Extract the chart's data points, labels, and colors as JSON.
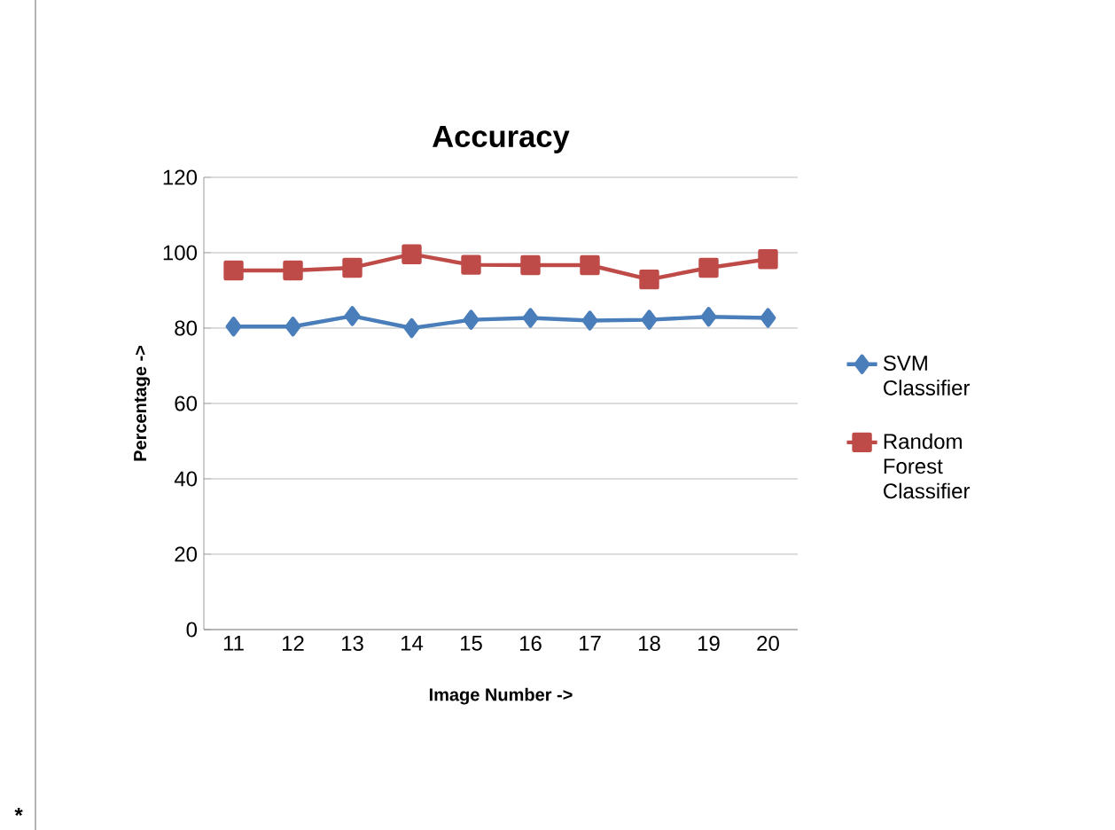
{
  "chart_data": {
    "type": "line",
    "title": "Accuracy",
    "xlabel": "Image Number ->",
    "ylabel": "Percentage ->",
    "categories": [
      "11",
      "12",
      "13",
      "14",
      "15",
      "16",
      "17",
      "18",
      "19",
      "20"
    ],
    "series": [
      {
        "name": "SVM Classifier",
        "color": "#4a7ebb",
        "marker": "diamond",
        "values": [
          80.4,
          80.4,
          83.2,
          80,
          82.2,
          82.7,
          82,
          82.2,
          83,
          82.7
        ]
      },
      {
        "name": "Random Forest Classifier",
        "color": "#be4b48",
        "marker": "square",
        "values": [
          95.3,
          95.3,
          96,
          99.6,
          96.8,
          96.7,
          96.7,
          92.9,
          96,
          98.3
        ]
      }
    ],
    "ylim": [
      0,
      120
    ],
    "yticks": [
      0,
      20,
      40,
      60,
      80,
      100,
      120
    ],
    "grid": "y",
    "legend": "right",
    "annotations": [
      "*"
    ]
  }
}
